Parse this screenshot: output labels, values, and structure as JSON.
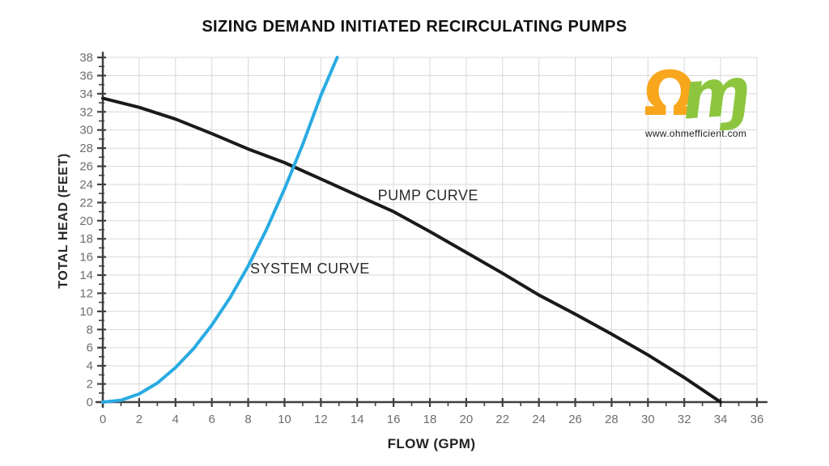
{
  "page": {
    "title": "SIZING DEMAND INITIATED RECIRCULATING PUMPS"
  },
  "logo": {
    "omega_glyph": "Ω",
    "m_glyph": "ɱ",
    "website": "www.ohmefficient.com",
    "omega_color": "#F8A61C",
    "m_color": "#8DC63E"
  },
  "chart_data": {
    "type": "line",
    "title": "SIZING DEMAND INITIATED RECIRCULATING PUMPS",
    "xlabel": "FLOW (GPM)",
    "ylabel": "TOTAL HEAD (FEET)",
    "xlim": [
      0,
      36
    ],
    "ylim": [
      0,
      38
    ],
    "xticks": [
      0,
      2,
      4,
      6,
      8,
      10,
      12,
      14,
      16,
      18,
      20,
      22,
      24,
      26,
      28,
      30,
      32,
      34,
      36
    ],
    "yticks": [
      0,
      2,
      4,
      6,
      8,
      10,
      12,
      14,
      16,
      18,
      20,
      22,
      24,
      26,
      28,
      30,
      32,
      34,
      36,
      38
    ],
    "minor_tick_step": 1,
    "grid": true,
    "legend_position": "none",
    "colors": {
      "grid": "#d8d8d8",
      "axis": "#404040",
      "tick_label": "#6e6e6e",
      "annotation_text": "#2b2b2b"
    },
    "series": [
      {
        "name": "PUMP CURVE",
        "color": "#1a1a1a",
        "points": [
          [
            0,
            33.5
          ],
          [
            2,
            32.5
          ],
          [
            4,
            31.2
          ],
          [
            6,
            29.6
          ],
          [
            8,
            27.9
          ],
          [
            10,
            26.4
          ],
          [
            12,
            24.6
          ],
          [
            14,
            22.8
          ],
          [
            16,
            21.0
          ],
          [
            18,
            18.8
          ],
          [
            20,
            16.5
          ],
          [
            22,
            14.2
          ],
          [
            24,
            11.8
          ],
          [
            26,
            9.7
          ],
          [
            28,
            7.5
          ],
          [
            30,
            5.2
          ],
          [
            32,
            2.7
          ],
          [
            34,
            0
          ]
        ]
      },
      {
        "name": "SYSTEM CURVE",
        "color": "#29abe2",
        "points": [
          [
            0,
            0
          ],
          [
            1,
            0.2
          ],
          [
            2,
            0.9
          ],
          [
            3,
            2.1
          ],
          [
            4,
            3.8
          ],
          [
            5,
            5.9
          ],
          [
            6,
            8.5
          ],
          [
            7,
            11.5
          ],
          [
            8,
            15.0
          ],
          [
            9,
            19.0
          ],
          [
            10,
            23.5
          ],
          [
            11,
            28.4
          ],
          [
            12,
            33.8
          ],
          [
            12.9,
            38
          ]
        ]
      }
    ],
    "annotations": [
      {
        "text": "PUMP CURVE",
        "x": 17.9,
        "y": 22.8
      },
      {
        "text": "SYSTEM CURVE",
        "x": 11.4,
        "y": 14.7
      }
    ]
  }
}
